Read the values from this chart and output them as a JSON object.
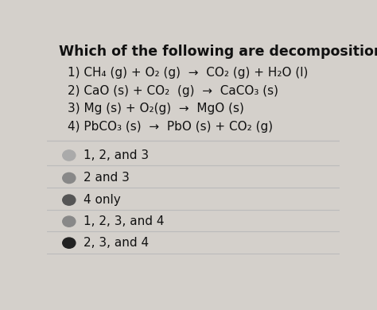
{
  "title": "Which of the following are decomposition reactions?",
  "reactions": [
    "1) CH₄ (g) + O₂ (g)  →  CO₂ (g) + H₂O (l)",
    "2) CaO (s) + CO₂  (g)  →  CaCO₃ (s)",
    "3) Mg (s) + O₂(g)  →  MgO (s)",
    "4) PbCO₃ (s)  →  PbO (s) + CO₂ (g)"
  ],
  "options": [
    "1, 2, and 3",
    "2 and 3",
    "4 only",
    "1, 2, 3, and 4",
    "2, 3, and 4"
  ],
  "circle_colors": [
    "#aaaaaa",
    "#888888",
    "#555555",
    "#888888",
    "#222222"
  ],
  "bg_color": "#d4d0cb",
  "text_color": "#111111",
  "title_fontsize": 12.5,
  "reaction_fontsize": 11.0,
  "option_fontsize": 11.0
}
